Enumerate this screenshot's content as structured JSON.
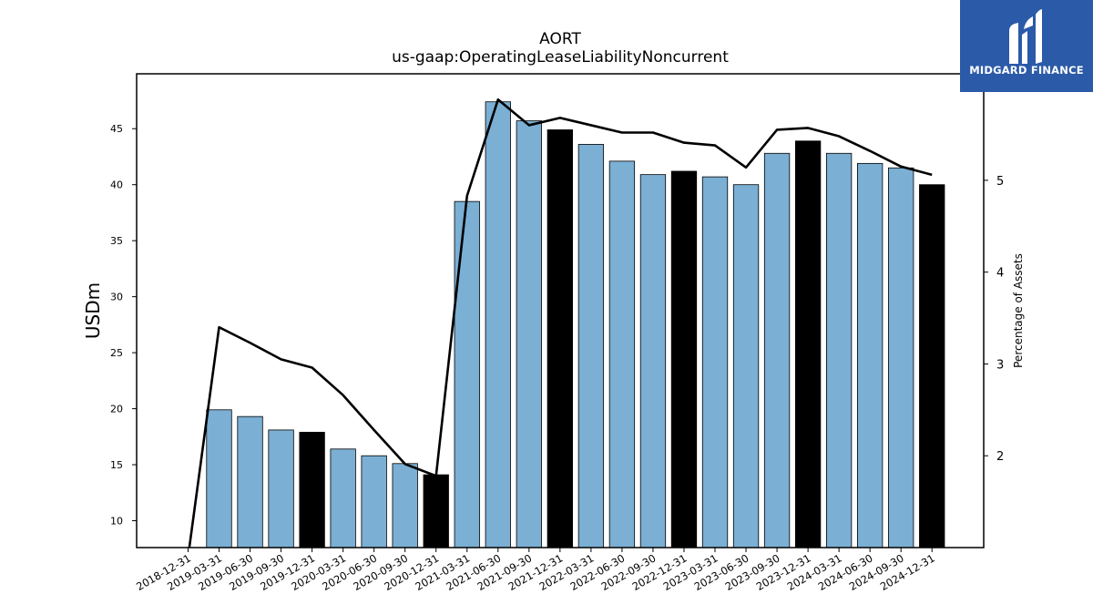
{
  "chart_data": {
    "type": "bar",
    "title": "AORT",
    "subtitle": "us-gaap:OperatingLeaseLiabilityNoncurrent",
    "ylabel": "USDm",
    "y2label": "Percentage of Assets",
    "ylim": [
      7.6,
      49.9
    ],
    "y2lim": [
      1.0,
      6.16
    ],
    "yticks": [
      10,
      15,
      20,
      25,
      30,
      35,
      40,
      45
    ],
    "y2ticks": [
      2,
      3,
      4,
      5
    ],
    "grid": false,
    "categories": [
      "2018-12-31",
      "2019-03-31",
      "2019-06-30",
      "2019-09-30",
      "2019-12-31",
      "2020-03-31",
      "2020-06-30",
      "2020-09-30",
      "2020-12-31",
      "2021-03-31",
      "2021-06-30",
      "2021-09-30",
      "2021-12-31",
      "2022-03-31",
      "2022-06-30",
      "2022-09-30",
      "2022-12-31",
      "2023-03-31",
      "2023-06-30",
      "2023-09-30",
      "2023-12-31",
      "2024-03-31",
      "2024-06-30",
      "2024-09-30",
      "2024-12-31"
    ],
    "series": [
      {
        "type": "bar",
        "values": [
          null,
          19.9,
          19.3,
          18.1,
          17.9,
          16.4,
          15.8,
          15.1,
          14.1,
          38.5,
          47.4,
          45.7,
          44.9,
          43.6,
          42.1,
          40.9,
          41.2,
          40.7,
          40.0,
          42.8,
          43.9,
          42.8,
          41.9,
          41.5,
          40.0
        ],
        "color": "#7bafd4",
        "highlight_color": "#000000",
        "highlight_categories": [
          "2019-12-31",
          "2020-12-31",
          "2021-12-31",
          "2022-12-31",
          "2023-12-31",
          "2024-12-31"
        ]
      },
      {
        "type": "line",
        "axis": "right",
        "color": "#000000",
        "values": [
          0.9,
          3.4,
          3.23,
          3.05,
          2.96,
          2.66,
          2.28,
          1.91,
          1.78,
          4.83,
          5.88,
          5.6,
          5.68,
          5.6,
          5.52,
          5.52,
          5.41,
          5.38,
          5.14,
          5.55,
          5.57,
          5.48,
          5.32,
          5.15,
          5.06
        ]
      }
    ]
  },
  "logo": {
    "text": "MIDGARD FINANCE",
    "bg": "#2b5aa8"
  }
}
